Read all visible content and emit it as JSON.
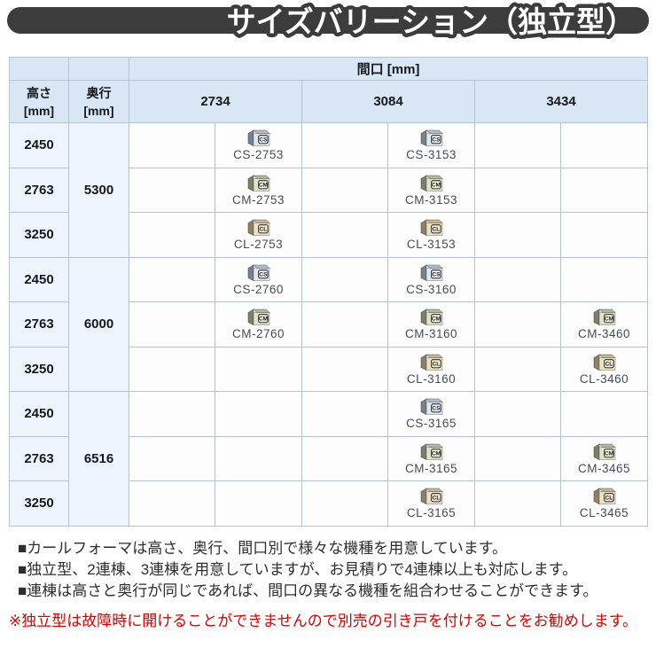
{
  "title": "サイズバリーション（独立型）",
  "table": {
    "header": {
      "width_label": "間口 [mm]",
      "height_label": "高さ",
      "depth_label": "奥行",
      "unit_label": "[mm]",
      "width_values": [
        "2734",
        "3084",
        "3434"
      ]
    },
    "groups": [
      {
        "depth": "5300",
        "rows": [
          {
            "height": "2450",
            "cells": [
              {
                "series": "CS",
                "code": "CS-2753"
              },
              {
                "series": "CS",
                "code": "CS-3153"
              },
              null
            ]
          },
          {
            "height": "2763",
            "cells": [
              {
                "series": "CM",
                "code": "CM-2753"
              },
              {
                "series": "CM",
                "code": "CM-3153"
              },
              null
            ]
          },
          {
            "height": "3250",
            "cells": [
              {
                "series": "CL",
                "code": "CL-2753"
              },
              {
                "series": "CL",
                "code": "CL-3153"
              },
              null
            ]
          }
        ]
      },
      {
        "depth": "6000",
        "rows": [
          {
            "height": "2450",
            "cells": [
              {
                "series": "CS",
                "code": "CS-2760"
              },
              {
                "series": "CS",
                "code": "CS-3160"
              },
              null
            ]
          },
          {
            "height": "2763",
            "cells": [
              {
                "series": "CM",
                "code": "CM-2760"
              },
              {
                "series": "CM",
                "code": "CM-3160"
              },
              {
                "series": "CM",
                "code": "CM-3460"
              }
            ]
          },
          {
            "height": "3250",
            "cells": [
              null,
              {
                "series": "CL",
                "code": "CL-3160"
              },
              {
                "series": "CL",
                "code": "CL-3460"
              }
            ]
          }
        ]
      },
      {
        "depth": "6516",
        "rows": [
          {
            "height": "2450",
            "cells": [
              null,
              {
                "series": "CS",
                "code": "CS-3165"
              },
              null
            ]
          },
          {
            "height": "2763",
            "cells": [
              null,
              {
                "series": "CM",
                "code": "CM-3165"
              },
              {
                "series": "CM",
                "code": "CM-3465"
              }
            ]
          },
          {
            "height": "3250",
            "cells": [
              null,
              {
                "series": "CL",
                "code": "CL-3165"
              },
              {
                "series": "CL",
                "code": "CL-3465"
              }
            ]
          }
        ]
      }
    ]
  },
  "notes": [
    "■カールフォーマは高さ、奥行、間口別で様々な機種を用意しています。",
    "■独立型、2連棟、3連棟を用意していますが、お見積りで4連棟以上も対応します。",
    "■連棟は高さと奥行が同じであれば、間口の異なる機種を組合わせることができます。"
  ],
  "warning": "※独立型は故障時に開けることができませんので別売の引き戸を付けることをお勧めします。",
  "colors": {
    "title_bar": "#3c3c3c",
    "header_cell": "#d9e6f4",
    "side_cell": "#eef4fb",
    "border": "#b3c2d4",
    "warning_text": "#d70000",
    "series": {
      "CS": {
        "side": "#76828e",
        "top": "#b4bec8",
        "front": "#e2e7ec",
        "badge_bg": "#eef1f4",
        "badge_border": "#3a4048"
      },
      "CM": {
        "side": "#7c8066",
        "top": "#b5b99c",
        "front": "#e0e2ce",
        "badge_bg": "#eff0e2",
        "badge_border": "#44482f"
      },
      "CL": {
        "side": "#8f7f64",
        "top": "#c6b694",
        "front": "#eae1c9",
        "badge_bg": "#f2ead6",
        "badge_border": "#4c4130"
      }
    }
  }
}
